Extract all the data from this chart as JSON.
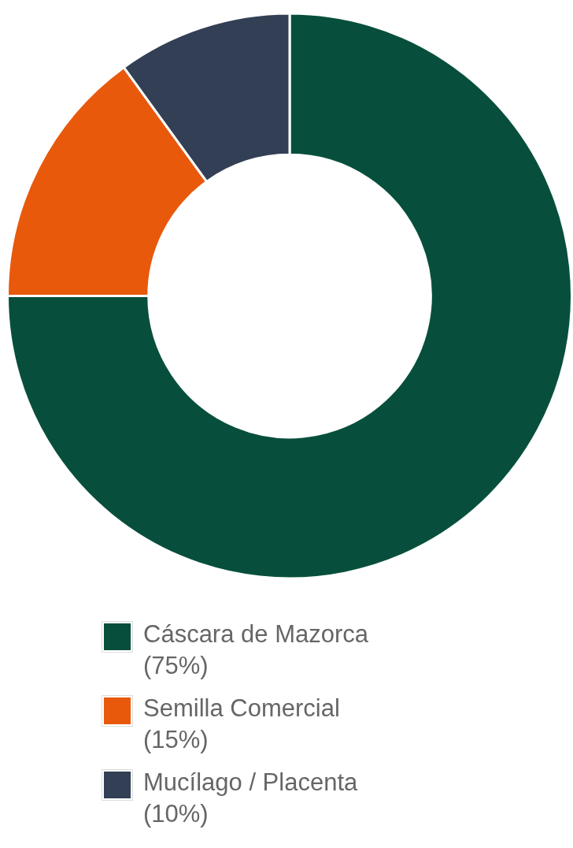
{
  "chart_data": {
    "type": "donut",
    "categories": [
      "Cáscara de Mazorca (75%)",
      "Semilla Comercial (15%)",
      "Mucílago / Placenta (10%)"
    ],
    "values": [
      75,
      15,
      10
    ],
    "colors": [
      "#074f3c",
      "#e8590c",
      "#323f54"
    ],
    "legend": "bottom"
  }
}
